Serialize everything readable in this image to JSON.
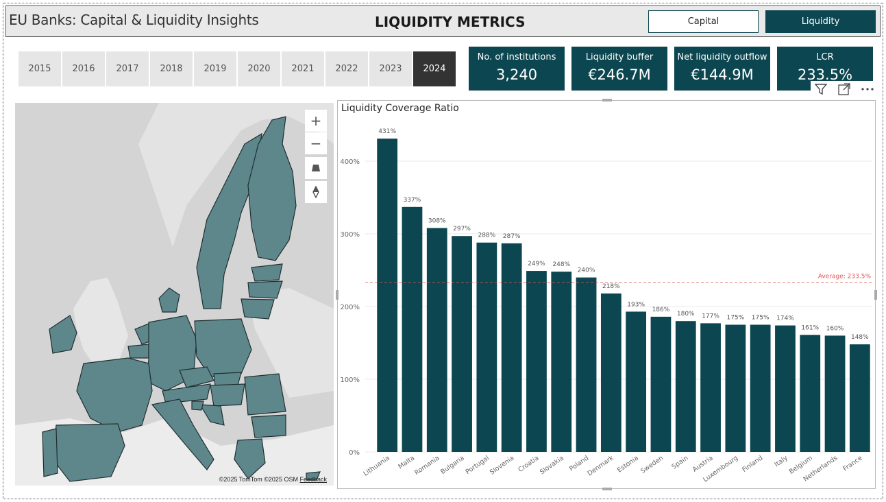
{
  "header": {
    "app_title": "EU Banks: Capital & Liquidity Insights",
    "page_title": "LIQUIDITY METRICS",
    "nav": {
      "capital_label": "Capital",
      "liquidity_label": "Liquidity",
      "active": "Liquidity"
    }
  },
  "years": [
    "2015",
    "2016",
    "2017",
    "2018",
    "2019",
    "2020",
    "2021",
    "2022",
    "2023",
    "2024"
  ],
  "selected_year": "2024",
  "kpis": [
    {
      "label": "No. of institutions",
      "value": "3,240"
    },
    {
      "label": "Liquidity buffer",
      "value": "€246.7M"
    },
    {
      "label": "Net liquidity outflow",
      "value": "€144.9M"
    },
    {
      "label": "LCR",
      "value": "233.5%"
    }
  ],
  "visual_icons": [
    "filter-icon",
    "focus-mode-icon",
    "more-options-icon"
  ],
  "map": {
    "controls": {
      "zoom_in": "+",
      "zoom_out": "−"
    },
    "attribution": "©2025 TomTom ©2025 OSM",
    "feedback": "Feedback",
    "land_color": "#5e878b",
    "background_color": "#d6d6d6"
  },
  "chart_data": {
    "type": "bar",
    "title": "Liquidity Coverage Ratio",
    "categories": [
      "Lithuania",
      "Malta",
      "Romania",
      "Bulgaria",
      "Portugal",
      "Slovenia",
      "Croatia",
      "Slovakia",
      "Poland",
      "Denmark",
      "Estonia",
      "Sweden",
      "Spain",
      "Austria",
      "Luxembourg",
      "Finland",
      "Italy",
      "Belgium",
      "Netherlands",
      "France"
    ],
    "values": [
      431,
      337,
      308,
      297,
      288,
      287,
      249,
      248,
      240,
      218,
      193,
      186,
      180,
      177,
      175,
      175,
      174,
      161,
      160,
      148
    ],
    "data_labels": [
      "431%",
      "337%",
      "308%",
      "297%",
      "288%",
      "287%",
      "249%",
      "248%",
      "240%",
      "218%",
      "193%",
      "186%",
      "180%",
      "177%",
      "175%",
      "175%",
      "174%",
      "161%",
      "160%",
      "148%"
    ],
    "ylim": [
      0,
      450
    ],
    "y_ticks": [
      0,
      100,
      200,
      300,
      400
    ],
    "y_tick_labels": [
      "0%",
      "100%",
      "200%",
      "300%",
      "400%"
    ],
    "reference_line": {
      "value": 233.5,
      "label": "Average: 233.5%",
      "color": "#e05050"
    },
    "bar_color": "#0c4650",
    "grid": true
  }
}
